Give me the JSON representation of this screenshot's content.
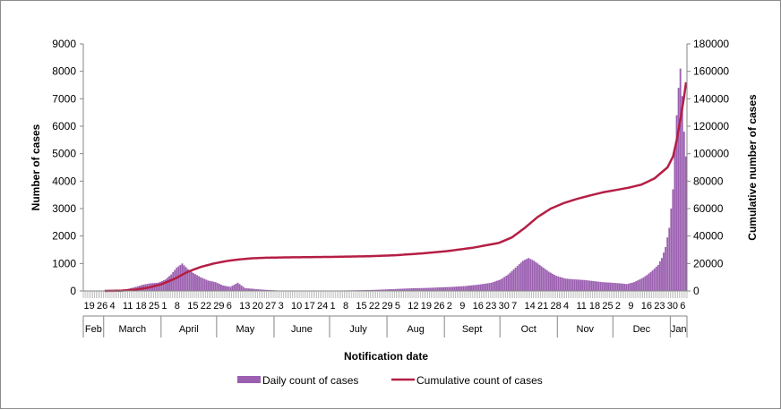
{
  "chart_data": {
    "type": "bar",
    "title": "",
    "xlabel": "Notification date",
    "ylabel": "Number of cases",
    "y2label": "Cumulative number of cases",
    "ylim": [
      0,
      9000
    ],
    "y2lim": [
      0,
      180000
    ],
    "yticks": [
      "0",
      "1000",
      "2000",
      "3000",
      "4000",
      "5000",
      "6000",
      "7000",
      "8000",
      "9000"
    ],
    "y2ticks": [
      "0",
      "20000",
      "40000",
      "60000",
      "80000",
      "100000",
      "120000",
      "140000",
      "160000",
      "180000"
    ],
    "grid": false,
    "legend_position": "bottom",
    "start_date": "2020-02-19",
    "end_date": "2021-01-09",
    "months": [
      {
        "label": "Feb",
        "start": "2020-02-19",
        "end": "2020-02-29",
        "days": [
          "19",
          "26"
        ]
      },
      {
        "label": "March",
        "start": "2020-03-01",
        "end": "2020-03-31",
        "days": [
          "4",
          "11",
          "18",
          "25"
        ]
      },
      {
        "label": "April",
        "start": "2020-04-01",
        "end": "2020-04-30",
        "days": [
          "1",
          "8",
          "15",
          "22",
          "29"
        ]
      },
      {
        "label": "May",
        "start": "2020-05-01",
        "end": "2020-05-31",
        "days": [
          "6",
          "13",
          "20",
          "27"
        ]
      },
      {
        "label": "June",
        "start": "2020-06-01",
        "end": "2020-06-30",
        "days": [
          "3",
          "10",
          "17",
          "24"
        ]
      },
      {
        "label": "July",
        "start": "2020-07-01",
        "end": "2020-07-31",
        "days": [
          "1",
          "8",
          "15",
          "22",
          "29"
        ]
      },
      {
        "label": "Aug",
        "start": "2020-08-01",
        "end": "2020-08-31",
        "days": [
          "5",
          "12",
          "19",
          "26"
        ]
      },
      {
        "label": "Sept",
        "start": "2020-09-01",
        "end": "2020-09-30",
        "days": [
          "2",
          "9",
          "16",
          "23",
          "30"
        ]
      },
      {
        "label": "Oct",
        "start": "2020-10-01",
        "end": "2020-10-31",
        "days": [
          "7",
          "14",
          "21",
          "28"
        ]
      },
      {
        "label": "Nov",
        "start": "2020-11-01",
        "end": "2020-11-30",
        "days": [
          "4",
          "11",
          "18",
          "25"
        ]
      },
      {
        "label": "Dec",
        "start": "2020-12-01",
        "end": "2020-12-31",
        "days": [
          "2",
          "9",
          "16",
          "23",
          "30"
        ]
      },
      {
        "label": "Jan",
        "start": "2021-01-01",
        "end": "2021-01-09",
        "days": [
          "6"
        ]
      }
    ],
    "series": [
      {
        "name": "Daily count of cases",
        "axis": "left",
        "color": "#9b5fb0",
        "points": [
          [
            "2020-02-19",
            0
          ],
          [
            "2020-03-01",
            0
          ],
          [
            "2020-03-06",
            10
          ],
          [
            "2020-03-10",
            30
          ],
          [
            "2020-03-14",
            80
          ],
          [
            "2020-03-18",
            150
          ],
          [
            "2020-03-22",
            230
          ],
          [
            "2020-03-26",
            280
          ],
          [
            "2020-03-30",
            300
          ],
          [
            "2020-04-03",
            420
          ],
          [
            "2020-04-06",
            600
          ],
          [
            "2020-04-09",
            850
          ],
          [
            "2020-04-12",
            1000
          ],
          [
            "2020-04-15",
            800
          ],
          [
            "2020-04-18",
            650
          ],
          [
            "2020-04-22",
            500
          ],
          [
            "2020-04-26",
            380
          ],
          [
            "2020-04-30",
            320
          ],
          [
            "2020-05-04",
            200
          ],
          [
            "2020-05-08",
            150
          ],
          [
            "2020-05-12",
            300
          ],
          [
            "2020-05-16",
            100
          ],
          [
            "2020-05-20",
            80
          ],
          [
            "2020-05-25",
            50
          ],
          [
            "2020-05-30",
            30
          ],
          [
            "2020-06-05",
            12
          ],
          [
            "2020-06-15",
            8
          ],
          [
            "2020-06-25",
            10
          ],
          [
            "2020-07-05",
            15
          ],
          [
            "2020-07-15",
            25
          ],
          [
            "2020-07-25",
            40
          ],
          [
            "2020-08-01",
            60
          ],
          [
            "2020-08-08",
            80
          ],
          [
            "2020-08-15",
            100
          ],
          [
            "2020-08-22",
            110
          ],
          [
            "2020-08-29",
            130
          ],
          [
            "2020-09-05",
            150
          ],
          [
            "2020-09-12",
            180
          ],
          [
            "2020-09-19",
            230
          ],
          [
            "2020-09-26",
            300
          ],
          [
            "2020-10-01",
            420
          ],
          [
            "2020-10-05",
            600
          ],
          [
            "2020-10-09",
            850
          ],
          [
            "2020-10-13",
            1100
          ],
          [
            "2020-10-16",
            1200
          ],
          [
            "2020-10-19",
            1100
          ],
          [
            "2020-10-23",
            900
          ],
          [
            "2020-10-27",
            700
          ],
          [
            "2020-10-31",
            550
          ],
          [
            "2020-11-05",
            450
          ],
          [
            "2020-11-10",
            420
          ],
          [
            "2020-11-15",
            400
          ],
          [
            "2020-11-20",
            360
          ],
          [
            "2020-11-25",
            320
          ],
          [
            "2020-11-30",
            300
          ],
          [
            "2020-12-04",
            280
          ],
          [
            "2020-12-08",
            250
          ],
          [
            "2020-12-12",
            320
          ],
          [
            "2020-12-16",
            450
          ],
          [
            "2020-12-19",
            580
          ],
          [
            "2020-12-22",
            750
          ],
          [
            "2020-12-25",
            950
          ],
          [
            "2020-12-27",
            1200
          ],
          [
            "2020-12-29",
            1600
          ],
          [
            "2020-12-31",
            2300
          ],
          [
            "2021-01-02",
            3700
          ],
          [
            "2021-01-03",
            5200
          ],
          [
            "2021-01-04",
            6400
          ],
          [
            "2021-01-05",
            7400
          ],
          [
            "2021-01-06",
            8100
          ],
          [
            "2021-01-07",
            7100
          ],
          [
            "2021-01-08",
            5800
          ],
          [
            "2021-01-09",
            4900
          ]
        ]
      },
      {
        "name": "Cumulative count of cases",
        "axis": "right",
        "color": "#b51e45",
        "points": [
          [
            "2020-02-19",
            0
          ],
          [
            "2020-03-01",
            0
          ],
          [
            "2020-03-10",
            200
          ],
          [
            "2020-03-18",
            1000
          ],
          [
            "2020-03-25",
            2500
          ],
          [
            "2020-04-01",
            5000
          ],
          [
            "2020-04-08",
            9000
          ],
          [
            "2020-04-15",
            14000
          ],
          [
            "2020-04-22",
            17500
          ],
          [
            "2020-04-29",
            20000
          ],
          [
            "2020-05-06",
            21800
          ],
          [
            "2020-05-13",
            23000
          ],
          [
            "2020-05-20",
            23800
          ],
          [
            "2020-05-27",
            24200
          ],
          [
            "2020-06-10",
            24500
          ],
          [
            "2020-07-01",
            24800
          ],
          [
            "2020-07-22",
            25300
          ],
          [
            "2020-08-05",
            26000
          ],
          [
            "2020-08-19",
            27300
          ],
          [
            "2020-09-02",
            29000
          ],
          [
            "2020-09-16",
            31500
          ],
          [
            "2020-09-30",
            35000
          ],
          [
            "2020-10-07",
            39000
          ],
          [
            "2020-10-14",
            46000
          ],
          [
            "2020-10-21",
            54000
          ],
          [
            "2020-10-28",
            60000
          ],
          [
            "2020-11-04",
            64000
          ],
          [
            "2020-11-11",
            67000
          ],
          [
            "2020-11-18",
            69500
          ],
          [
            "2020-11-25",
            71800
          ],
          [
            "2020-12-02",
            73500
          ],
          [
            "2020-12-09",
            75200
          ],
          [
            "2020-12-16",
            77500
          ],
          [
            "2020-12-23",
            82000
          ],
          [
            "2020-12-30",
            90000
          ],
          [
            "2021-01-02",
            98000
          ],
          [
            "2021-01-04",
            110000
          ],
          [
            "2021-01-06",
            125000
          ],
          [
            "2021-01-08",
            142000
          ],
          [
            "2021-01-09",
            152000
          ]
        ]
      }
    ]
  }
}
